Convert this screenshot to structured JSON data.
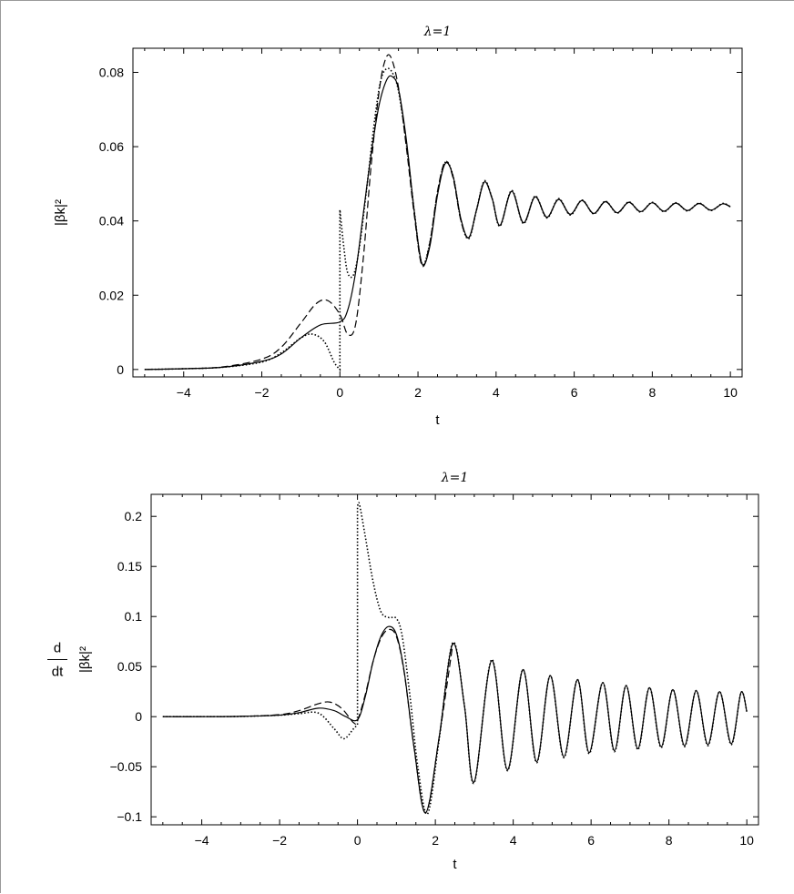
{
  "chart_data": [
    {
      "type": "line",
      "title": "λ=1",
      "xlabel": "t",
      "ylabel": "|βk|²",
      "xlim": [
        -5.3,
        10.3
      ],
      "ylim": [
        -0.002,
        0.0865
      ],
      "xticks": [
        -4,
        -2,
        0,
        2,
        4,
        6,
        8,
        10
      ],
      "yticks": [
        0,
        0.02,
        0.04,
        0.06,
        0.08
      ],
      "xtick_labels": [
        "−4",
        "−2",
        "0",
        "2",
        "4",
        "6",
        "8",
        "10"
      ],
      "ytick_labels": [
        "0",
        "0.02",
        "0.04",
        "0.06",
        "0.08"
      ],
      "grid": false,
      "series": [
        {
          "style": "solid",
          "x": [
            -5,
            -4,
            -3,
            -2,
            -1.5,
            -1,
            -0.5,
            0,
            0.2,
            0.4,
            0.6,
            0.8,
            1.0,
            1.2,
            1.35,
            1.5,
            1.7,
            1.9,
            2.1,
            2.3,
            2.5,
            2.7,
            2.9,
            3.1,
            3.3,
            3.5,
            3.7,
            3.9,
            4.1,
            4.4,
            4.7,
            5.0,
            5.3,
            5.6,
            5.9,
            6.2,
            6.5,
            6.8,
            7.1,
            7.4,
            7.7,
            8.0,
            8.3,
            8.6,
            8.9,
            9.2,
            9.5,
            9.8,
            10.0
          ],
          "y": [
            0.0,
            0.0002,
            0.0006,
            0.0022,
            0.0042,
            0.0085,
            0.012,
            0.0128,
            0.016,
            0.026,
            0.042,
            0.058,
            0.071,
            0.078,
            0.0788,
            0.0755,
            0.062,
            0.043,
            0.0285,
            0.033,
            0.047,
            0.0555,
            0.052,
            0.0405,
            0.0355,
            0.043,
            0.0505,
            0.046,
            0.0388,
            0.048,
            0.0395,
            0.0465,
            0.041,
            0.0458,
            0.0418,
            0.0455,
            0.042,
            0.0452,
            0.0422,
            0.045,
            0.0425,
            0.0449,
            0.0426,
            0.0448,
            0.0428,
            0.0447,
            0.0429,
            0.0446,
            0.0438
          ]
        },
        {
          "style": "dashed",
          "x": [
            -5,
            -4,
            -3,
            -2,
            -1.5,
            -1,
            -0.6,
            -0.3,
            0,
            0.2,
            0.4,
            0.6,
            0.8,
            1.0,
            1.15,
            1.3,
            1.5,
            1.7,
            1.9,
            2.1,
            2.3,
            2.5,
            2.7,
            2.9,
            3.1,
            3.3,
            3.5,
            3.7,
            3.9,
            4.1,
            4.4,
            4.7,
            5.0,
            5.3,
            5.6,
            5.9,
            6.2,
            6.5,
            6.8,
            7.1,
            7.4,
            7.7,
            8.0,
            8.3,
            8.6,
            8.9,
            9.2,
            9.5,
            9.8,
            10.0
          ],
          "y": [
            0.0,
            0.0002,
            0.0007,
            0.0028,
            0.006,
            0.0125,
            0.0178,
            0.0185,
            0.0148,
            0.0095,
            0.012,
            0.03,
            0.055,
            0.0745,
            0.083,
            0.0842,
            0.076,
            0.06,
            0.042,
            0.028,
            0.034,
            0.048,
            0.056,
            0.0515,
            0.04,
            0.0355,
            0.043,
            0.0505,
            0.046,
            0.0388,
            0.048,
            0.0395,
            0.0465,
            0.041,
            0.0458,
            0.0418,
            0.0455,
            0.042,
            0.0452,
            0.0422,
            0.045,
            0.0425,
            0.0449,
            0.0426,
            0.0448,
            0.0428,
            0.0447,
            0.0429,
            0.0446,
            0.0438
          ]
        },
        {
          "style": "dotted",
          "x": [
            -5,
            -4,
            -3,
            -2,
            -1.5,
            -1,
            -0.7,
            -0.4,
            -0.15,
            0,
            0.0,
            0.1,
            0.2,
            0.35,
            0.5,
            0.7,
            0.9,
            1.05,
            1.2,
            1.35,
            1.5,
            1.7,
            1.9,
            2.1,
            2.3,
            2.5,
            2.7,
            2.9,
            3.1,
            3.3,
            3.5,
            3.7,
            3.9,
            4.1,
            4.4,
            4.7,
            5.0,
            5.3,
            5.6,
            5.9,
            6.2,
            6.5,
            6.8,
            7.1,
            7.4,
            7.7,
            8.0,
            8.3,
            8.6,
            8.9,
            9.2,
            9.5,
            9.8,
            10.0
          ],
          "y": [
            0.0,
            0.0002,
            0.0006,
            0.002,
            0.0045,
            0.0085,
            0.0095,
            0.0075,
            0.002,
            0.0,
            0.043,
            0.033,
            0.026,
            0.0255,
            0.033,
            0.05,
            0.068,
            0.078,
            0.081,
            0.0798,
            0.075,
            0.061,
            0.043,
            0.0285,
            0.034,
            0.0475,
            0.0558,
            0.052,
            0.0402,
            0.0352,
            0.043,
            0.0508,
            0.046,
            0.0386,
            0.0482,
            0.0393,
            0.0467,
            0.0408,
            0.046,
            0.0416,
            0.0456,
            0.0419,
            0.0453,
            0.0421,
            0.0451,
            0.0424,
            0.045,
            0.0425,
            0.0449,
            0.0427,
            0.0448,
            0.0428,
            0.0447,
            0.0438
          ]
        }
      ]
    },
    {
      "type": "line",
      "title": "λ=1",
      "xlabel": "t",
      "ylabel_top": "d",
      "ylabel_bottom": "dt",
      "ylabel_expr": "|βk|²",
      "xlim": [
        -5.3,
        10.3
      ],
      "ylim": [
        -0.108,
        0.222
      ],
      "xticks": [
        -4,
        -2,
        0,
        2,
        4,
        6,
        8,
        10
      ],
      "yticks": [
        -0.1,
        -0.05,
        0,
        0.05,
        0.1,
        0.15,
        0.2
      ],
      "xtick_labels": [
        "−4",
        "−2",
        "0",
        "2",
        "4",
        "6",
        "8",
        "10"
      ],
      "ytick_labels": [
        "−0.1",
        "−0.05",
        "0",
        "0.05",
        "0.1",
        "0.15",
        "0.2"
      ],
      "grid": false,
      "series": [
        {
          "style": "solid",
          "x": [
            -5,
            -4,
            -3,
            -2,
            -1.5,
            -1.0,
            -0.6,
            -0.3,
            0,
            0.2,
            0.4,
            0.6,
            0.8,
            1.0,
            1.2,
            1.45,
            1.75,
            2.1,
            2.45,
            2.75,
            3.0,
            3.45,
            3.85,
            4.25,
            4.6,
            4.95,
            5.3,
            5.65,
            5.95,
            6.3,
            6.6,
            6.9,
            7.2,
            7.5,
            7.8,
            8.1,
            8.4,
            8.7,
            9.0,
            9.3,
            9.6,
            9.85,
            10.0
          ],
          "y": [
            0,
            0,
            0.0003,
            0.0015,
            0.004,
            0.0085,
            0.006,
            0.0,
            -0.003,
            0.02,
            0.055,
            0.08,
            0.09,
            0.082,
            0.045,
            -0.03,
            -0.096,
            -0.02,
            0.073,
            0.01,
            -0.065,
            0.056,
            -0.053,
            0.047,
            -0.045,
            0.041,
            -0.04,
            0.037,
            -0.036,
            0.034,
            -0.034,
            0.031,
            -0.032,
            0.029,
            -0.03,
            0.027,
            -0.029,
            0.026,
            -0.028,
            0.025,
            -0.027,
            0.024,
            0.005
          ]
        },
        {
          "style": "dashed",
          "x": [
            -5,
            -4,
            -3,
            -2,
            -1.5,
            -1.0,
            -0.7,
            -0.4,
            -0.1,
            0,
            0.2,
            0.4,
            0.6,
            0.8,
            1.0,
            1.2,
            1.45,
            1.75,
            2.1,
            2.45
          ],
          "y": [
            0,
            0,
            0.0003,
            0.002,
            0.006,
            0.013,
            0.0145,
            0.008,
            -0.006,
            -0.004,
            0.022,
            0.055,
            0.078,
            0.087,
            0.08,
            0.044,
            -0.03,
            -0.096,
            -0.02,
            0.073
          ]
        },
        {
          "style": "dotted",
          "x": [
            -5,
            -4,
            -3,
            -2,
            -1.5,
            -1.0,
            -0.6,
            -0.35,
            -0.1,
            0.0,
            0.0,
            0.05,
            0.2,
            0.4,
            0.6,
            0.8,
            1.0,
            1.15,
            1.35,
            1.55,
            1.8,
            2.1,
            2.45,
            2.75,
            3.0,
            3.45,
            3.85,
            4.25,
            4.6,
            4.95,
            5.3,
            5.65,
            5.95,
            6.3,
            6.6,
            6.9,
            7.2,
            7.5,
            7.8,
            8.1,
            8.4,
            8.7,
            9.0,
            9.3,
            9.6,
            9.85,
            10.0
          ],
          "y": [
            0,
            0,
            0.0002,
            0.0015,
            0.003,
            0.0035,
            -0.012,
            -0.022,
            -0.012,
            -0.008,
            0.21,
            0.212,
            0.18,
            0.135,
            0.105,
            0.099,
            0.098,
            0.08,
            0.02,
            -0.05,
            -0.097,
            -0.022,
            0.074,
            0.01,
            -0.066,
            0.057,
            -0.054,
            0.047,
            -0.046,
            0.041,
            -0.041,
            0.037,
            -0.037,
            0.034,
            -0.035,
            0.031,
            -0.033,
            0.029,
            -0.031,
            0.027,
            -0.03,
            0.026,
            -0.029,
            0.025,
            -0.028,
            0.024,
            0.005
          ]
        }
      ]
    }
  ]
}
